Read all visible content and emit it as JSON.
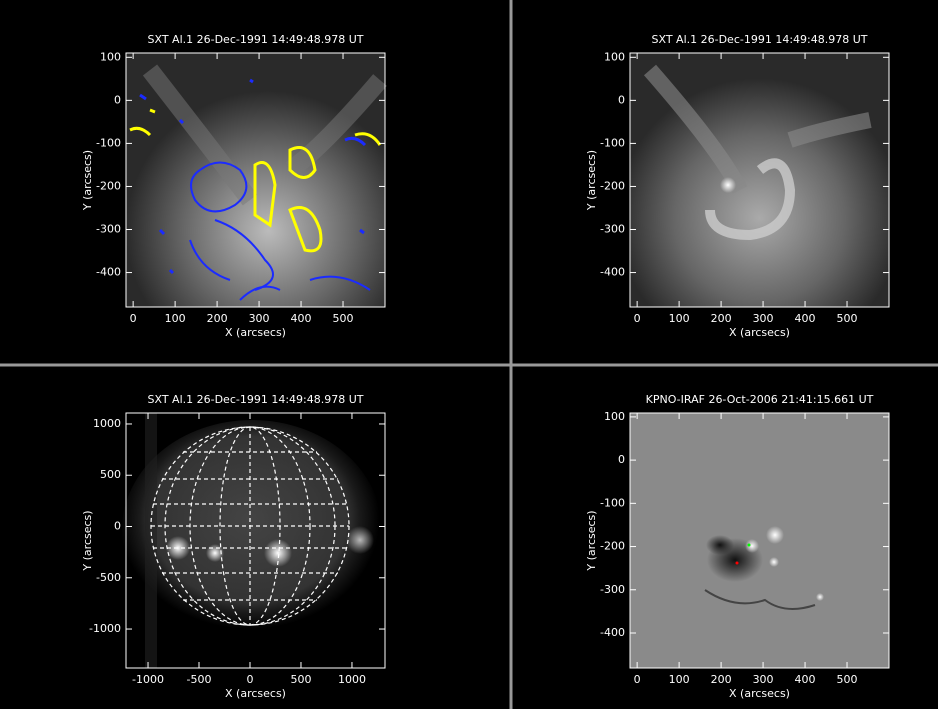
{
  "panels": [
    {
      "title": "SXT Al.1 26-Dec-1991 14:49:48.978 UT",
      "xlabel": "X (arcsecs)",
      "ylabel": "Y (arcsecs)",
      "xlim": [
        -17,
        600
      ],
      "ylim": [
        -480,
        110
      ],
      "xticks": [
        0,
        100,
        200,
        300,
        400,
        500
      ],
      "yticks": [
        100,
        0,
        -100,
        -200,
        -300,
        -400
      ]
    },
    {
      "title": "SXT Al.1 26-Dec-1991 14:49:48.978 UT",
      "xlabel": "X (arcsecs)",
      "ylabel": "Y (arcsecs)",
      "xlim": [
        -17,
        600
      ],
      "ylim": [
        -480,
        110
      ],
      "xticks": [
        0,
        100,
        200,
        300,
        400,
        500
      ],
      "yticks": [
        100,
        0,
        -100,
        -200,
        -300,
        -400
      ]
    },
    {
      "title": "SXT Al.1 26-Dec-1991 14:49:48.978 UT",
      "xlabel": "X (arcsecs)",
      "ylabel": "Y (arcsecs)",
      "xlim": [
        -1216,
        1324
      ],
      "ylim": [
        -1380,
        1107
      ],
      "xticks": [
        -1000,
        -500,
        0,
        500,
        1000
      ],
      "yticks": [
        1000,
        500,
        0,
        -500,
        -1000
      ]
    },
    {
      "title": "KPNO-IRAF 26-Oct-2006 21:41:15.661 UT",
      "xlabel": "X (arcsecs)",
      "ylabel": "Y (arcsecs)",
      "xlim": [
        -17,
        600
      ],
      "ylim": [
        -481,
        109
      ],
      "xticks": [
        0,
        100,
        200,
        300,
        400,
        500
      ],
      "yticks": [
        100,
        0,
        -100,
        -200,
        -300,
        -400
      ]
    }
  ]
}
